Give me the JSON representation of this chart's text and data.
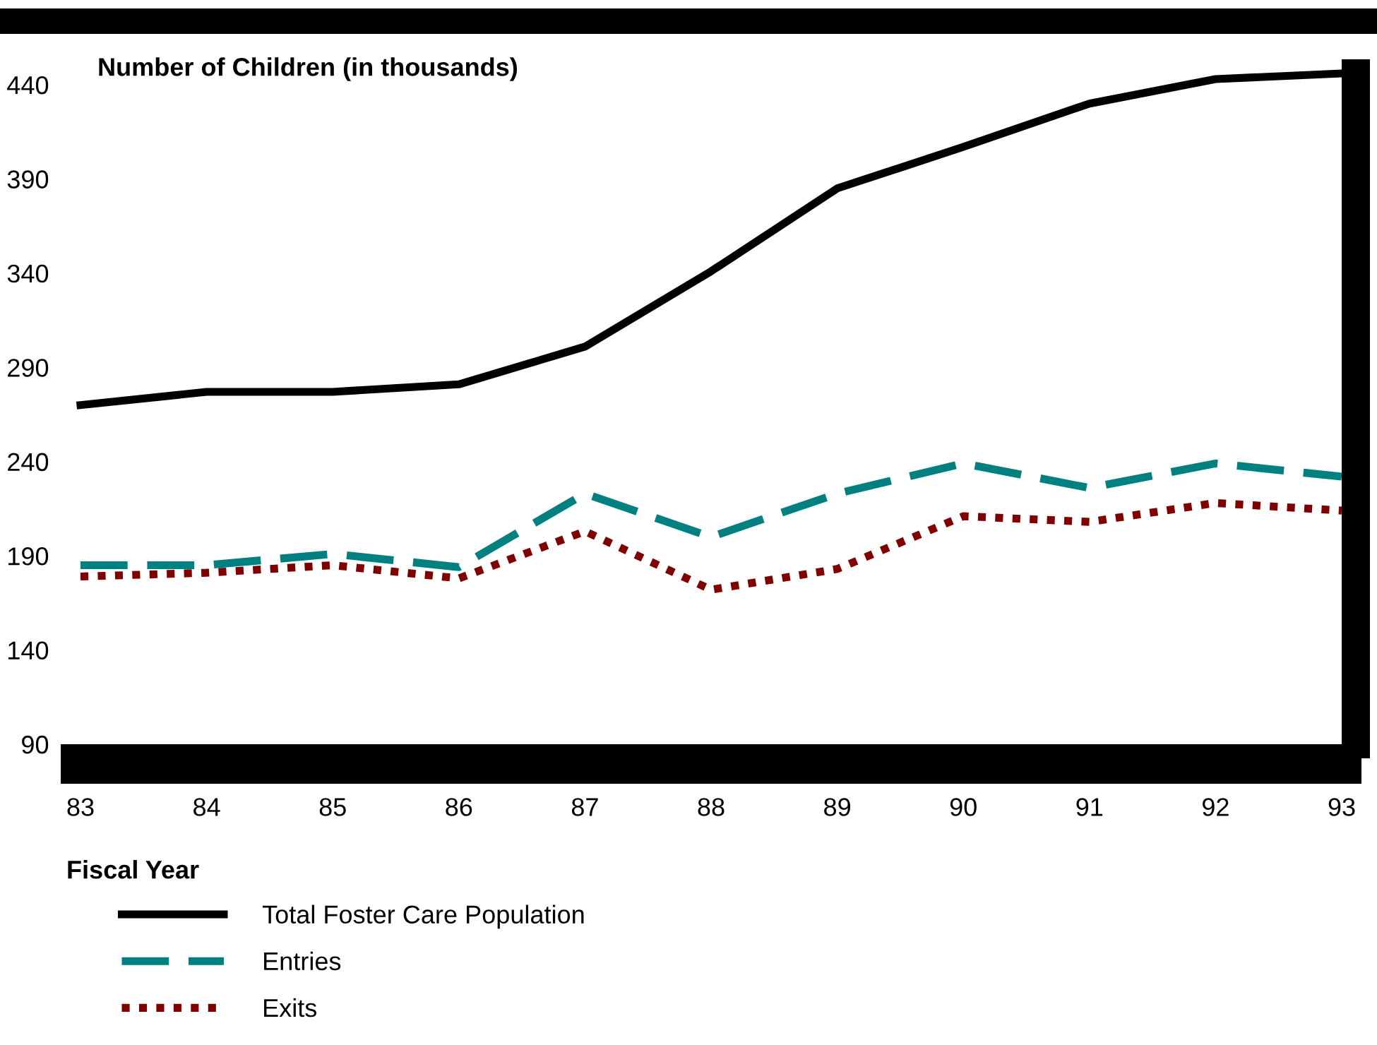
{
  "chart_data": {
    "type": "line",
    "ylabel": "Number of Children (in thousands)",
    "xlabel": "Fiscal Year",
    "x": [
      83,
      84,
      85,
      86,
      87,
      88,
      89,
      90,
      91,
      92,
      93
    ],
    "xlim": [
      83,
      93
    ],
    "xticks": [
      83,
      84,
      85,
      86,
      87,
      88,
      89,
      90,
      91,
      92,
      93
    ],
    "ylim": [
      90,
      446
    ],
    "yticks": [
      90,
      140,
      190,
      240,
      290,
      340,
      390,
      440
    ],
    "grid": false,
    "legend": "bottom",
    "series": [
      {
        "name": "Total Foster Care Population",
        "color": "#000000",
        "line_style": "solid",
        "values": [
          270,
          277,
          277,
          281,
          301,
          341,
          385,
          407,
          430,
          443,
          446
        ]
      },
      {
        "name": "Entries",
        "color": "#008080",
        "line_style": "dashed",
        "values": [
          185,
          185,
          191,
          184,
          223,
          200,
          223,
          239,
          226,
          239,
          232
        ]
      },
      {
        "name": "Exits",
        "color": "#800000",
        "line_style": "dotted",
        "values": [
          179,
          181,
          185,
          178,
          203,
          172,
          183,
          211,
          208,
          218,
          214
        ]
      }
    ]
  }
}
